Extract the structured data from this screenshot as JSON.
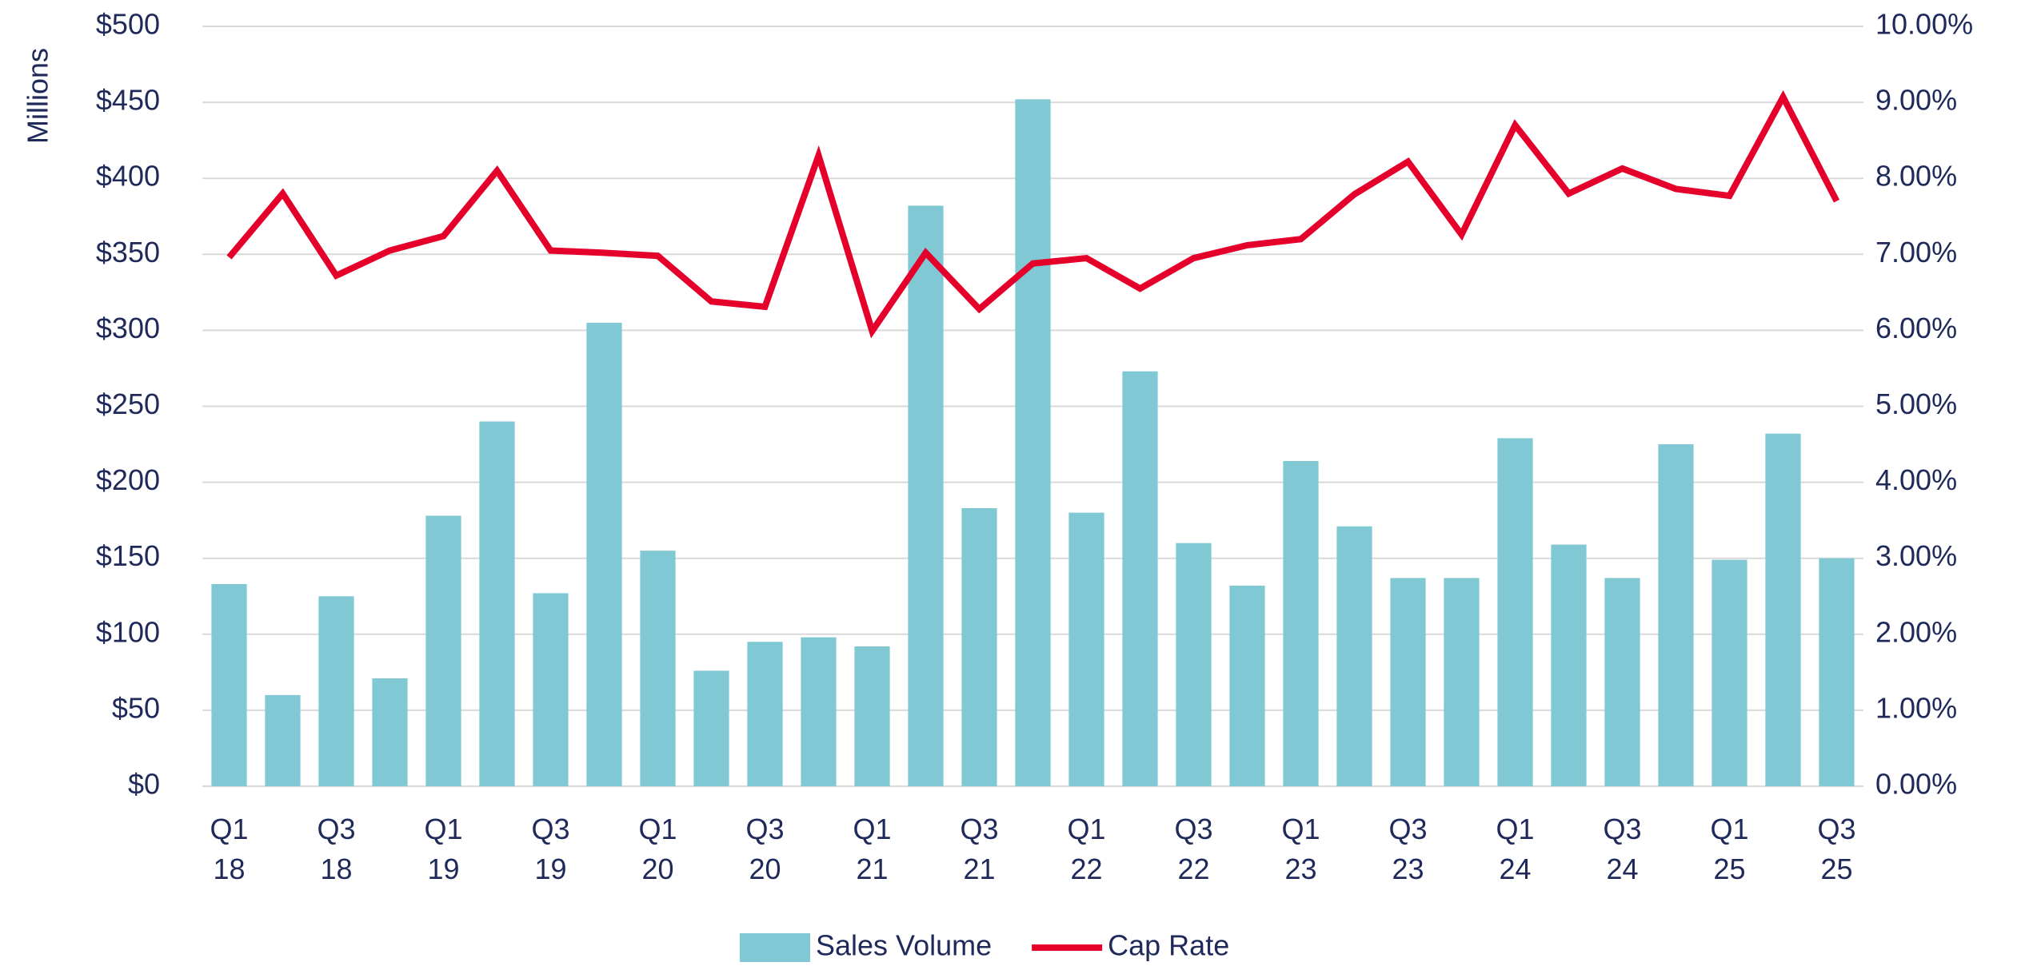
{
  "chart_data": {
    "type": "bar-line",
    "y_label": "Millions",
    "categories": [
      "Q1 18",
      null,
      "Q3 18",
      null,
      "Q1 19",
      null,
      "Q3 19",
      null,
      "Q1 20",
      null,
      "Q3 20",
      null,
      "Q1 21",
      null,
      "Q3 21",
      null,
      "Q1 22",
      null,
      "Q3 22",
      null,
      "Q1 23",
      null,
      "Q3 23",
      null,
      "Q1 24",
      null,
      "Q3 24",
      null,
      "Q1 25",
      null,
      "Q3 25"
    ],
    "series": [
      {
        "name": "Sales Volume",
        "type": "bar",
        "color": "#80c8d4",
        "values": [
          133,
          60,
          125,
          71,
          178,
          240,
          127,
          305,
          155,
          76,
          95,
          98,
          92,
          382,
          183,
          452,
          180,
          273,
          160,
          132,
          214,
          171,
          137,
          137,
          229,
          159,
          137,
          225,
          149,
          232,
          150
        ]
      },
      {
        "name": "Cap Rate",
        "type": "line",
        "axis": "y2",
        "color": "#e4002b",
        "values": [
          6.96,
          7.8,
          6.72,
          7.05,
          7.24,
          8.1,
          7.05,
          7.02,
          6.98,
          6.38,
          6.31,
          8.3,
          5.99,
          7.02,
          6.28,
          6.88,
          6.95,
          6.55,
          6.95,
          7.12,
          7.2,
          7.79,
          8.22,
          7.26,
          8.7,
          7.8,
          8.13,
          7.86,
          7.77,
          9.07,
          7.7
        ]
      }
    ],
    "ylim": [
      0,
      500
    ],
    "yticks": [
      {
        "value": 0,
        "label": "$0"
      },
      {
        "value": 50,
        "label": "$50"
      },
      {
        "value": 100,
        "label": "$100"
      },
      {
        "value": 150,
        "label": "$150"
      },
      {
        "value": 200,
        "label": "$200"
      },
      {
        "value": 250,
        "label": "$250"
      },
      {
        "value": 300,
        "label": "$300"
      },
      {
        "value": 350,
        "label": "$350"
      },
      {
        "value": 400,
        "label": "$400"
      },
      {
        "value": 450,
        "label": "$450"
      },
      {
        "value": 500,
        "label": "$500"
      }
    ],
    "y2lim": [
      0,
      10
    ],
    "y2ticks": [
      {
        "value": 0,
        "label": "0.00%"
      },
      {
        "value": 1,
        "label": "1.00%"
      },
      {
        "value": 2,
        "label": "2.00%"
      },
      {
        "value": 3,
        "label": "3.00%"
      },
      {
        "value": 4,
        "label": "4.00%"
      },
      {
        "value": 5,
        "label": "5.00%"
      },
      {
        "value": 6,
        "label": "6.00%"
      },
      {
        "value": 7,
        "label": "7.00%"
      },
      {
        "value": 8,
        "label": "8.00%"
      },
      {
        "value": 9,
        "label": "9.00%"
      },
      {
        "value": 10,
        "label": "10.00%"
      }
    ],
    "grid": true,
    "legend": "bottom"
  }
}
